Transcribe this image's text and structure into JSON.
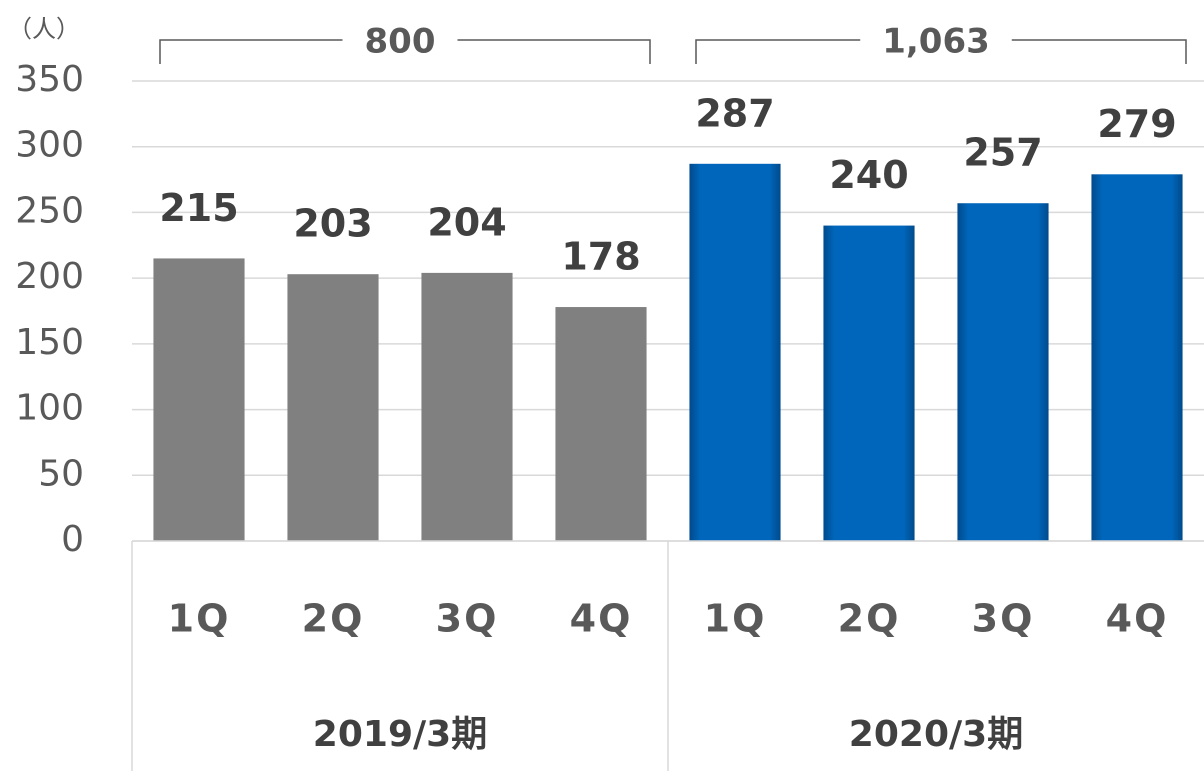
{
  "chart_data": {
    "type": "bar",
    "unit_label": "（人）",
    "ylim": [
      0,
      350
    ],
    "yticks": [
      0,
      50,
      100,
      150,
      200,
      250,
      300,
      350
    ],
    "grid": true,
    "groups": [
      {
        "name": "2019/3期",
        "color": "#808080",
        "categories": [
          "1Q",
          "2Q",
          "3Q",
          "4Q"
        ],
        "values": [
          215,
          203,
          204,
          178
        ]
      },
      {
        "name": "2020/3期",
        "color": "#0066bb",
        "categories": [
          "1Q",
          "2Q",
          "3Q",
          "4Q"
        ],
        "values": [
          287,
          240,
          257,
          279
        ]
      }
    ],
    "group_totals": {
      "values": [
        800,
        1063
      ],
      "value_labels": [
        "800",
        "1,063"
      ]
    }
  }
}
